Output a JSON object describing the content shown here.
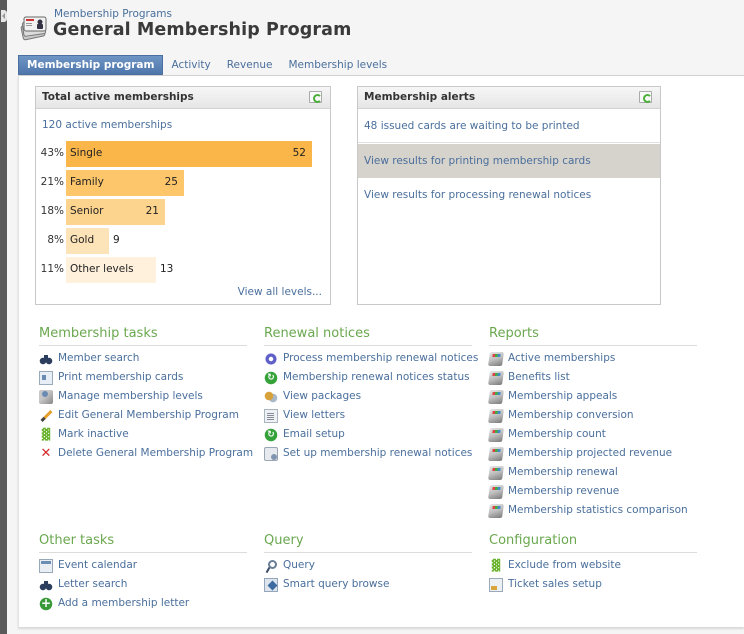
{
  "header": {
    "breadcrumb": "Membership Programs",
    "title": "General Membership Program",
    "icon": "membership-cards-icon"
  },
  "tabs": [
    {
      "label": "Membership program",
      "active": true
    },
    {
      "label": "Activity",
      "active": false
    },
    {
      "label": "Revenue",
      "active": false
    },
    {
      "label": "Membership levels",
      "active": false
    }
  ],
  "memberships_panel": {
    "title": "Total active memberships",
    "active_count": "120 active memberships",
    "view_all": "View all levels...",
    "bars": [
      {
        "pct": "43%",
        "label": "Single",
        "value": "52",
        "count": 52,
        "color": "#fbb64a"
      },
      {
        "pct": "21%",
        "label": "Family",
        "value": "25",
        "count": 25,
        "color": "#fdc66a"
      },
      {
        "pct": "18%",
        "label": "Senior",
        "value": "21",
        "count": 21,
        "color": "#fdd48e"
      },
      {
        "pct": "8%",
        "label": "Gold",
        "value": "9",
        "count": 9,
        "color": "#fde4b8"
      },
      {
        "pct": "11%",
        "label": "Other levels",
        "value": "13",
        "count": 13,
        "color": "#fff1dc"
      }
    ]
  },
  "alerts_panel": {
    "title": "Membership alerts",
    "items": [
      "48 issued cards are waiting to be printed",
      "View results for printing membership cards",
      "View results for processing renewal notices"
    ]
  },
  "sections": {
    "membership_tasks": {
      "title": "Membership tasks",
      "items": [
        {
          "label": "Member search",
          "icon": "binoculars"
        },
        {
          "label": "Print membership cards",
          "icon": "card"
        },
        {
          "label": "Manage membership levels",
          "icon": "levels"
        },
        {
          "label": "Edit General Membership Program",
          "icon": "pencil"
        },
        {
          "label": "Mark inactive",
          "icon": "people"
        },
        {
          "label": "Delete General Membership Program",
          "icon": "x"
        }
      ]
    },
    "renewal_notices": {
      "title": "Renewal notices",
      "items": [
        {
          "label": "Process membership renewal notices",
          "icon": "gear"
        },
        {
          "label": "Membership renewal notices status",
          "icon": "green-circle"
        },
        {
          "label": "View packages",
          "icon": "packages"
        },
        {
          "label": "View letters",
          "icon": "letters"
        },
        {
          "label": "Email setup",
          "icon": "green-circle"
        },
        {
          "label": "Set up membership renewal notices",
          "icon": "setup-letter"
        }
      ]
    },
    "reports": {
      "title": "Reports",
      "items": [
        {
          "label": "Active memberships",
          "icon": "report"
        },
        {
          "label": "Benefits list",
          "icon": "report"
        },
        {
          "label": "Membership appeals",
          "icon": "report"
        },
        {
          "label": "Membership conversion",
          "icon": "report"
        },
        {
          "label": "Membership count",
          "icon": "report"
        },
        {
          "label": "Membership projected revenue",
          "icon": "report"
        },
        {
          "label": "Membership renewal",
          "icon": "report"
        },
        {
          "label": "Membership revenue",
          "icon": "report"
        },
        {
          "label": "Membership statistics comparison",
          "icon": "report"
        }
      ]
    },
    "other_tasks": {
      "title": "Other tasks",
      "items": [
        {
          "label": "Event calendar",
          "icon": "calendar"
        },
        {
          "label": "Letter search",
          "icon": "binoculars"
        },
        {
          "label": "Add a membership letter",
          "icon": "add"
        }
      ]
    },
    "query": {
      "title": "Query",
      "items": [
        {
          "label": "Query",
          "icon": "query"
        },
        {
          "label": "Smart query browse",
          "icon": "smartquery"
        }
      ]
    },
    "configuration": {
      "title": "Configuration",
      "items": [
        {
          "label": "Exclude from website",
          "icon": "people"
        },
        {
          "label": "Ticket sales setup",
          "icon": "ticket"
        }
      ]
    }
  }
}
